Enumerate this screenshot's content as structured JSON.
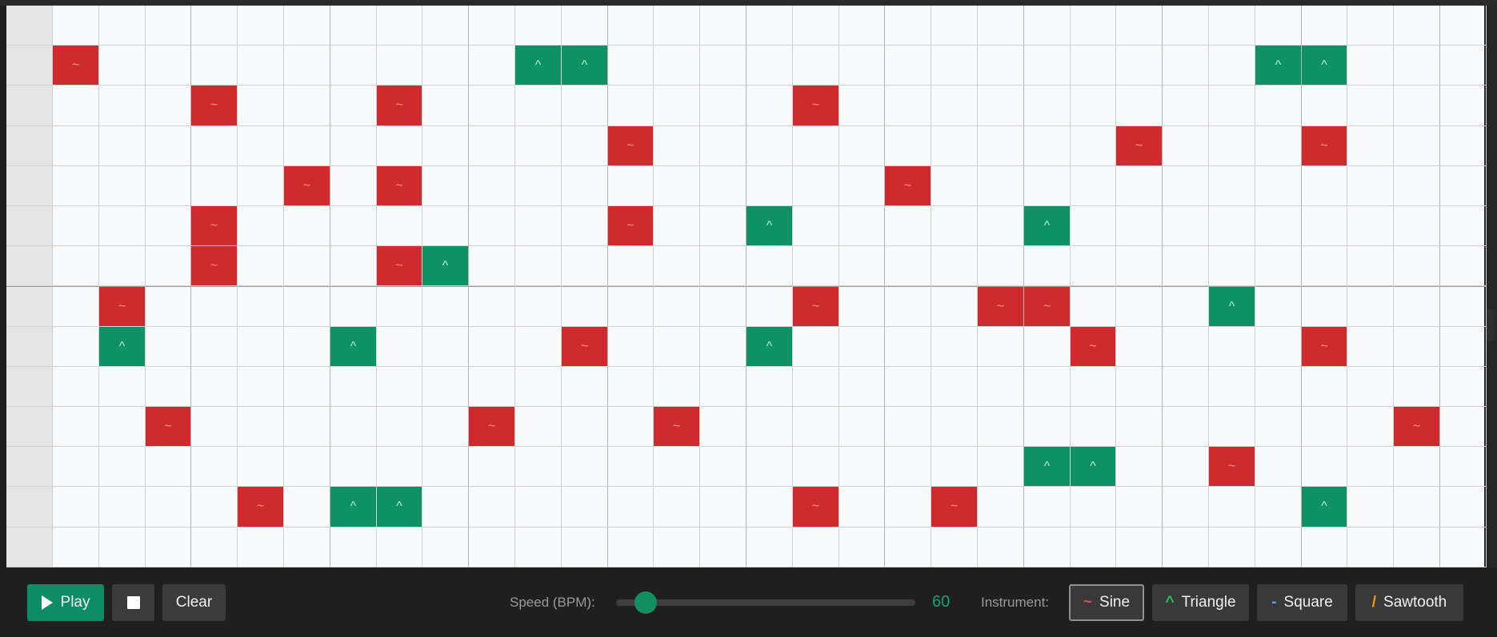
{
  "sequencer": {
    "rows": 14,
    "steps": 31,
    "symbols": {
      "sine": "~",
      "triangle": "^"
    },
    "notes": [
      {
        "row": 1,
        "step": 0,
        "instrument": "sine"
      },
      {
        "row": 1,
        "step": 10,
        "instrument": "triangle"
      },
      {
        "row": 1,
        "step": 11,
        "instrument": "triangle"
      },
      {
        "row": 1,
        "step": 26,
        "instrument": "triangle"
      },
      {
        "row": 1,
        "step": 27,
        "instrument": "triangle"
      },
      {
        "row": 2,
        "step": 3,
        "instrument": "sine"
      },
      {
        "row": 2,
        "step": 7,
        "instrument": "sine"
      },
      {
        "row": 2,
        "step": 16,
        "instrument": "sine"
      },
      {
        "row": 3,
        "step": 12,
        "instrument": "sine"
      },
      {
        "row": 3,
        "step": 23,
        "instrument": "sine"
      },
      {
        "row": 3,
        "step": 27,
        "instrument": "sine"
      },
      {
        "row": 4,
        "step": 5,
        "instrument": "sine"
      },
      {
        "row": 4,
        "step": 7,
        "instrument": "sine"
      },
      {
        "row": 4,
        "step": 18,
        "instrument": "sine"
      },
      {
        "row": 5,
        "step": 3,
        "instrument": "sine"
      },
      {
        "row": 5,
        "step": 12,
        "instrument": "sine"
      },
      {
        "row": 5,
        "step": 15,
        "instrument": "triangle"
      },
      {
        "row": 5,
        "step": 21,
        "instrument": "triangle"
      },
      {
        "row": 6,
        "step": 3,
        "instrument": "sine"
      },
      {
        "row": 6,
        "step": 7,
        "instrument": "sine"
      },
      {
        "row": 6,
        "step": 8,
        "instrument": "triangle"
      },
      {
        "row": 7,
        "step": 1,
        "instrument": "sine"
      },
      {
        "row": 7,
        "step": 16,
        "instrument": "sine"
      },
      {
        "row": 7,
        "step": 20,
        "instrument": "sine"
      },
      {
        "row": 7,
        "step": 21,
        "instrument": "sine"
      },
      {
        "row": 7,
        "step": 25,
        "instrument": "triangle"
      },
      {
        "row": 8,
        "step": 1,
        "instrument": "triangle"
      },
      {
        "row": 8,
        "step": 6,
        "instrument": "triangle"
      },
      {
        "row": 8,
        "step": 11,
        "instrument": "sine"
      },
      {
        "row": 8,
        "step": 15,
        "instrument": "triangle"
      },
      {
        "row": 8,
        "step": 22,
        "instrument": "sine"
      },
      {
        "row": 8,
        "step": 27,
        "instrument": "sine"
      },
      {
        "row": 10,
        "step": 2,
        "instrument": "sine"
      },
      {
        "row": 10,
        "step": 9,
        "instrument": "sine"
      },
      {
        "row": 10,
        "step": 13,
        "instrument": "sine"
      },
      {
        "row": 10,
        "step": 29,
        "instrument": "sine"
      },
      {
        "row": 11,
        "step": 21,
        "instrument": "triangle"
      },
      {
        "row": 11,
        "step": 22,
        "instrument": "triangle"
      },
      {
        "row": 11,
        "step": 25,
        "instrument": "sine"
      },
      {
        "row": 12,
        "step": 4,
        "instrument": "sine"
      },
      {
        "row": 12,
        "step": 6,
        "instrument": "triangle"
      },
      {
        "row": 12,
        "step": 7,
        "instrument": "triangle"
      },
      {
        "row": 12,
        "step": 16,
        "instrument": "sine"
      },
      {
        "row": 12,
        "step": 19,
        "instrument": "sine"
      },
      {
        "row": 12,
        "step": 27,
        "instrument": "triangle"
      }
    ]
  },
  "controls": {
    "play_label": "Play",
    "clear_label": "Clear",
    "speed_label": "Speed (BPM):",
    "speed_value": "60",
    "speed_fraction": 0.1,
    "instrument_label": "Instrument:",
    "selected_instrument": "sine",
    "instruments": [
      {
        "id": "sine",
        "label": "Sine",
        "icon_glyph": "~",
        "color": "#e5484d"
      },
      {
        "id": "triangle",
        "label": "Triangle",
        "icon_glyph": "^",
        "color": "#22c55e"
      },
      {
        "id": "square",
        "label": "Square",
        "icon_glyph": "-",
        "color": "#4ea3ff"
      },
      {
        "id": "sawtooth",
        "label": "Sawtooth",
        "icon_glyph": "/",
        "color": "#f59e0b"
      }
    ]
  },
  "colors": {
    "accent": "#0e8c64",
    "sine_cell": "#cf2b2f",
    "triangle_cell": "#0e9265"
  }
}
